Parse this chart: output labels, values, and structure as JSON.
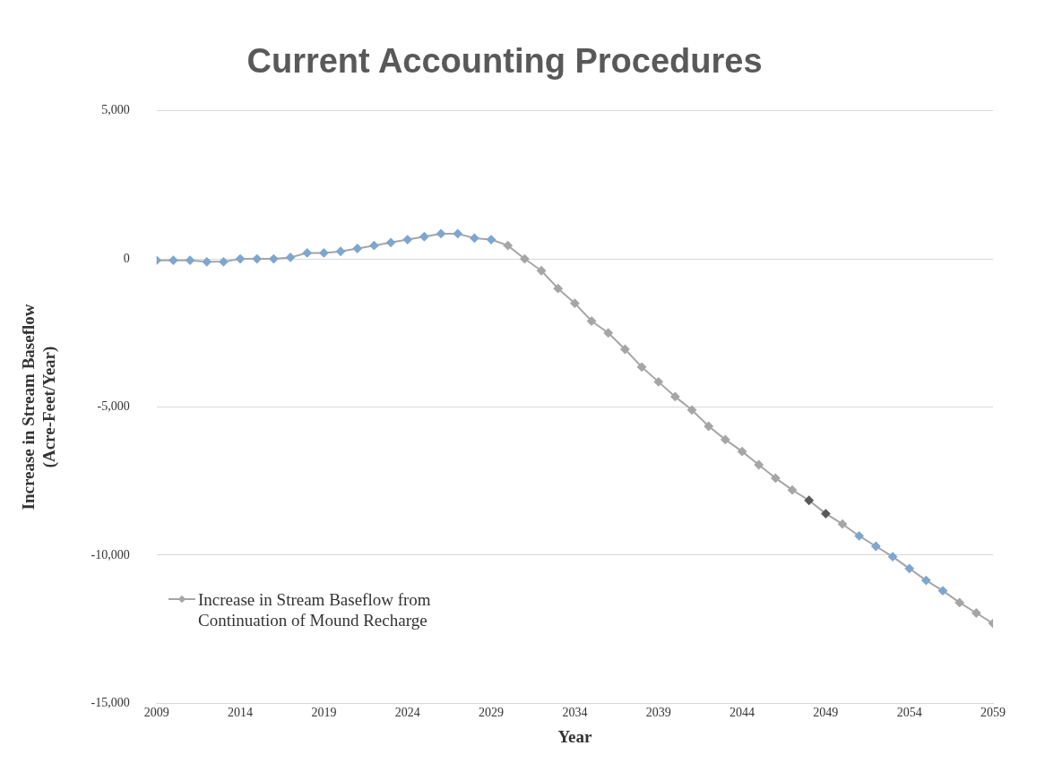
{
  "chart_data": {
    "type": "line",
    "title": "Current Accounting Procedures",
    "xlabel": "Year",
    "ylabel": "Increase in Stream Baseflow\n(Acre-Feet/Year)",
    "x": [
      2009,
      2010,
      2011,
      2012,
      2013,
      2014,
      2015,
      2016,
      2017,
      2018,
      2019,
      2020,
      2021,
      2022,
      2023,
      2024,
      2025,
      2026,
      2027,
      2028,
      2029,
      2030,
      2031,
      2032,
      2033,
      2034,
      2035,
      2036,
      2037,
      2038,
      2039,
      2040,
      2041,
      2042,
      2043,
      2044,
      2045,
      2046,
      2047,
      2048,
      2049,
      2050,
      2051,
      2052,
      2053,
      2054,
      2055,
      2056,
      2057,
      2058,
      2059
    ],
    "series": [
      {
        "name": "Increase in Stream Baseflow from Continuation of Mound Recharge",
        "color": "#a6a6a6",
        "colors": [
          "#7ea6d0",
          "#7ea6d0",
          "#7ea6d0",
          "#7ea6d0",
          "#7ea6d0",
          "#7ea6d0",
          "#7ea6d0",
          "#7ea6d0",
          "#7ea6d0",
          "#7ea6d0",
          "#7ea6d0",
          "#7ea6d0",
          "#7ea6d0",
          "#7ea6d0",
          "#7ea6d0",
          "#7ea6d0",
          "#7ea6d0",
          "#7ea6d0",
          "#7ea6d0",
          "#7ea6d0",
          "#7ea6d0",
          "#a6a6a6",
          "#a6a6a6",
          "#a6a6a6",
          "#a6a6a6",
          "#a6a6a6",
          "#a6a6a6",
          "#a6a6a6",
          "#a6a6a6",
          "#a6a6a6",
          "#a6a6a6",
          "#a6a6a6",
          "#a6a6a6",
          "#a6a6a6",
          "#a6a6a6",
          "#a6a6a6",
          "#a6a6a6",
          "#a6a6a6",
          "#a6a6a6",
          "#595959",
          "#595959",
          "#a6a6a6",
          "#7ea6d0",
          "#7ea6d0",
          "#7ea6d0",
          "#7ea6d0",
          "#7ea6d0",
          "#7ea6d0",
          "#a6a6a6",
          "#a6a6a6",
          "#a6a6a6"
        ],
        "values": [
          -50,
          -50,
          -50,
          -100,
          -100,
          0,
          0,
          0,
          50,
          200,
          200,
          250,
          350,
          450,
          550,
          650,
          750,
          850,
          850,
          700,
          650,
          450,
          0,
          -400,
          -1000,
          -1500,
          -2100,
          -2500,
          -3050,
          -3650,
          -4150,
          -4650,
          -5100,
          -5650,
          -6100,
          -6500,
          -6950,
          -7400,
          -7800,
          -8150,
          -8600,
          -8950,
          -9350,
          -9700,
          -10050,
          -10450,
          -10850,
          -11200,
          -11600,
          -11950,
          -12300
        ]
      }
    ],
    "xlim": [
      2009,
      2059
    ],
    "xticks": [
      2009,
      2014,
      2019,
      2024,
      2029,
      2034,
      2039,
      2044,
      2049,
      2054,
      2059
    ],
    "ylim": [
      -15000,
      5000
    ],
    "yticks": [
      {
        "value": 5000,
        "label": "5,000"
      },
      0,
      {
        "value": -5000,
        "label": "-5,000"
      },
      {
        "value": -10000,
        "label": "-10,000"
      },
      {
        "value": -15000,
        "label": "-15,000"
      }
    ],
    "grid": "y",
    "legend": "bottom left",
    "marker": "diamond",
    "line_style": "solid"
  }
}
